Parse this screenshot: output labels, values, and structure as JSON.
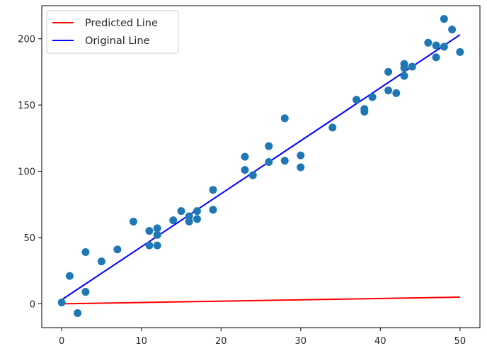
{
  "chart_data": {
    "type": "scatter",
    "title": "",
    "xlabel": "",
    "ylabel": "",
    "xlim": [
      -2.5,
      52.5
    ],
    "ylim": [
      -18,
      225
    ],
    "x_ticks": [
      0,
      10,
      20,
      30,
      40,
      50
    ],
    "y_ticks": [
      0,
      50,
      100,
      150,
      200
    ],
    "x_tick_labels": [
      "0",
      "10",
      "20",
      "30",
      "40",
      "50"
    ],
    "y_tick_labels": [
      "0",
      "50",
      "100",
      "150",
      "200"
    ],
    "grid": false,
    "legend_position": "upper-left",
    "points": {
      "color": "#1f77b4",
      "x": [
        0,
        1,
        2,
        3,
        3,
        5,
        7,
        9,
        11,
        11,
        12,
        12,
        12,
        14,
        15,
        16,
        16,
        17,
        17,
        19,
        19,
        23,
        23,
        24,
        26,
        26,
        28,
        28,
        30,
        30,
        34,
        37,
        38,
        38,
        39,
        41,
        41,
        42,
        43,
        43,
        43,
        44,
        46,
        47,
        47,
        48,
        48,
        49,
        50
      ],
      "y": [
        1,
        21,
        -7,
        9,
        39,
        32,
        41,
        62,
        44,
        55,
        44,
        52,
        57,
        63,
        70,
        62,
        66,
        64,
        70,
        71,
        86,
        101,
        111,
        97,
        107,
        119,
        108,
        140,
        103,
        112,
        133,
        154,
        145,
        147,
        156,
        161,
        175,
        159,
        172,
        178,
        181,
        179,
        197,
        186,
        195,
        194,
        215,
        207,
        190
      ]
    },
    "series": [
      {
        "name": "Predicted Line",
        "color": "#ff0000",
        "x": [
          0,
          50
        ],
        "y": [
          0,
          5
        ]
      },
      {
        "name": "Original Line",
        "color": "#0000ff",
        "x": [
          0,
          50
        ],
        "y": [
          3,
          203
        ]
      }
    ]
  }
}
